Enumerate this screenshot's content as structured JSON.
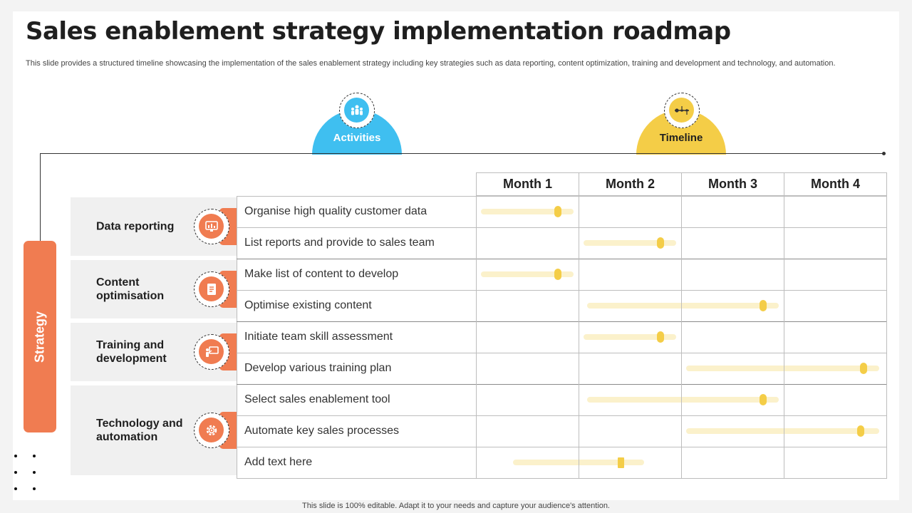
{
  "title": "Sales enablement strategy implementation roadmap",
  "subtitle": "This slide provides a structured timeline showcasing the implementation of the sales enablement strategy including key strategies such as data reporting, content optimization, training and development and technology, and automation.",
  "header": {
    "activities_label": "Activities",
    "timeline_label": "Timeline"
  },
  "strategy_label": "Strategy",
  "months": [
    "Month 1",
    "Month 2",
    "Month 3",
    "Month 4"
  ],
  "strategies": [
    {
      "label": "Data reporting",
      "icon": "report-icon"
    },
    {
      "label": "Content optimisation",
      "icon": "document-icon"
    },
    {
      "label": "Training and development",
      "icon": "presentation-icon"
    },
    {
      "label": "Technology and automation",
      "icon": "gear-icon"
    }
  ],
  "activities": [
    {
      "label": "Organise high quality customer data",
      "start_month": 1.05,
      "end_month": 1.95,
      "progress_month": 1.8
    },
    {
      "label": "List reports and provide to sales team",
      "start_month": 2.05,
      "end_month": 2.95,
      "progress_month": 2.8
    },
    {
      "label": "Make list of content to develop",
      "start_month": 1.05,
      "end_month": 1.95,
      "progress_month": 1.8
    },
    {
      "label": "Optimise existing content",
      "start_month": 2.08,
      "end_month": 3.95,
      "progress_month": 3.8
    },
    {
      "label": "Initiate team skill assessment",
      "start_month": 2.05,
      "end_month": 2.95,
      "progress_month": 2.8
    },
    {
      "label": "Develop various training plan",
      "start_month": 3.05,
      "end_month": 4.93,
      "progress_month": 4.78
    },
    {
      "label": "Select sales enablement tool",
      "start_month": 2.08,
      "end_month": 3.95,
      "progress_month": 3.8
    },
    {
      "label": "Automate key sales processes",
      "start_month": 3.05,
      "end_month": 4.93,
      "progress_month": 4.75
    },
    {
      "label": "Add text here",
      "start_month": 1.36,
      "end_month": 2.64,
      "progress_month": 2.42
    }
  ],
  "footer": "This slide is 100% editable. Adapt it to your needs and capture your audience's attention."
}
